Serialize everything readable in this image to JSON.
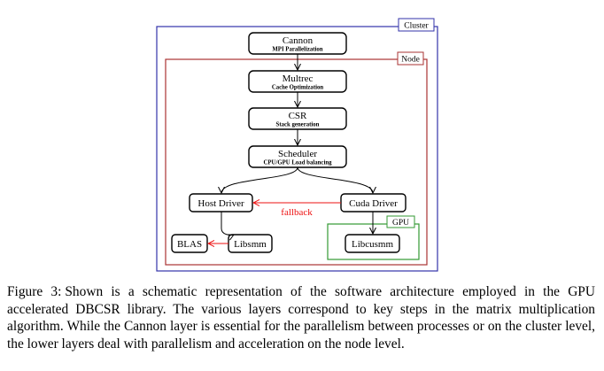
{
  "diagram": {
    "regions": {
      "cluster": "Cluster",
      "node": "Node",
      "gpu": "GPU"
    },
    "boxes": {
      "cannon": {
        "title": "Cannon",
        "subtitle": "MPI Parallelization"
      },
      "multrec": {
        "title": "Multrec",
        "subtitle": "Cache Optimization"
      },
      "csr": {
        "title": "CSR",
        "subtitle": "Stack generation"
      },
      "scheduler": {
        "title": "Scheduler",
        "subtitle": "CPU/GPU Load balancing"
      },
      "host_driver": {
        "title": "Host Driver"
      },
      "cuda_driver": {
        "title": "Cuda Driver"
      },
      "blas": {
        "title": "BLAS"
      },
      "libsmm": {
        "title": "Libsmm"
      },
      "libcusmm": {
        "title": "Libcusmm"
      }
    },
    "edge_labels": {
      "fallback": "fallback"
    },
    "colors": {
      "cluster": "#3333aa",
      "node": "#aa3333",
      "gpu": "#339933",
      "fallback": "#ee1111"
    }
  },
  "caption": {
    "label": "Figure 3:",
    "text": "Shown is a schematic representation of the software architecture employed in the GPU accelerated DBCSR library. The various layers correspond to key steps in the matrix multiplication algorithm. While the Cannon layer is essential for the parallelism between processes or on the cluster level, the lower layers deal with parallelism and acceleration on the node level."
  }
}
